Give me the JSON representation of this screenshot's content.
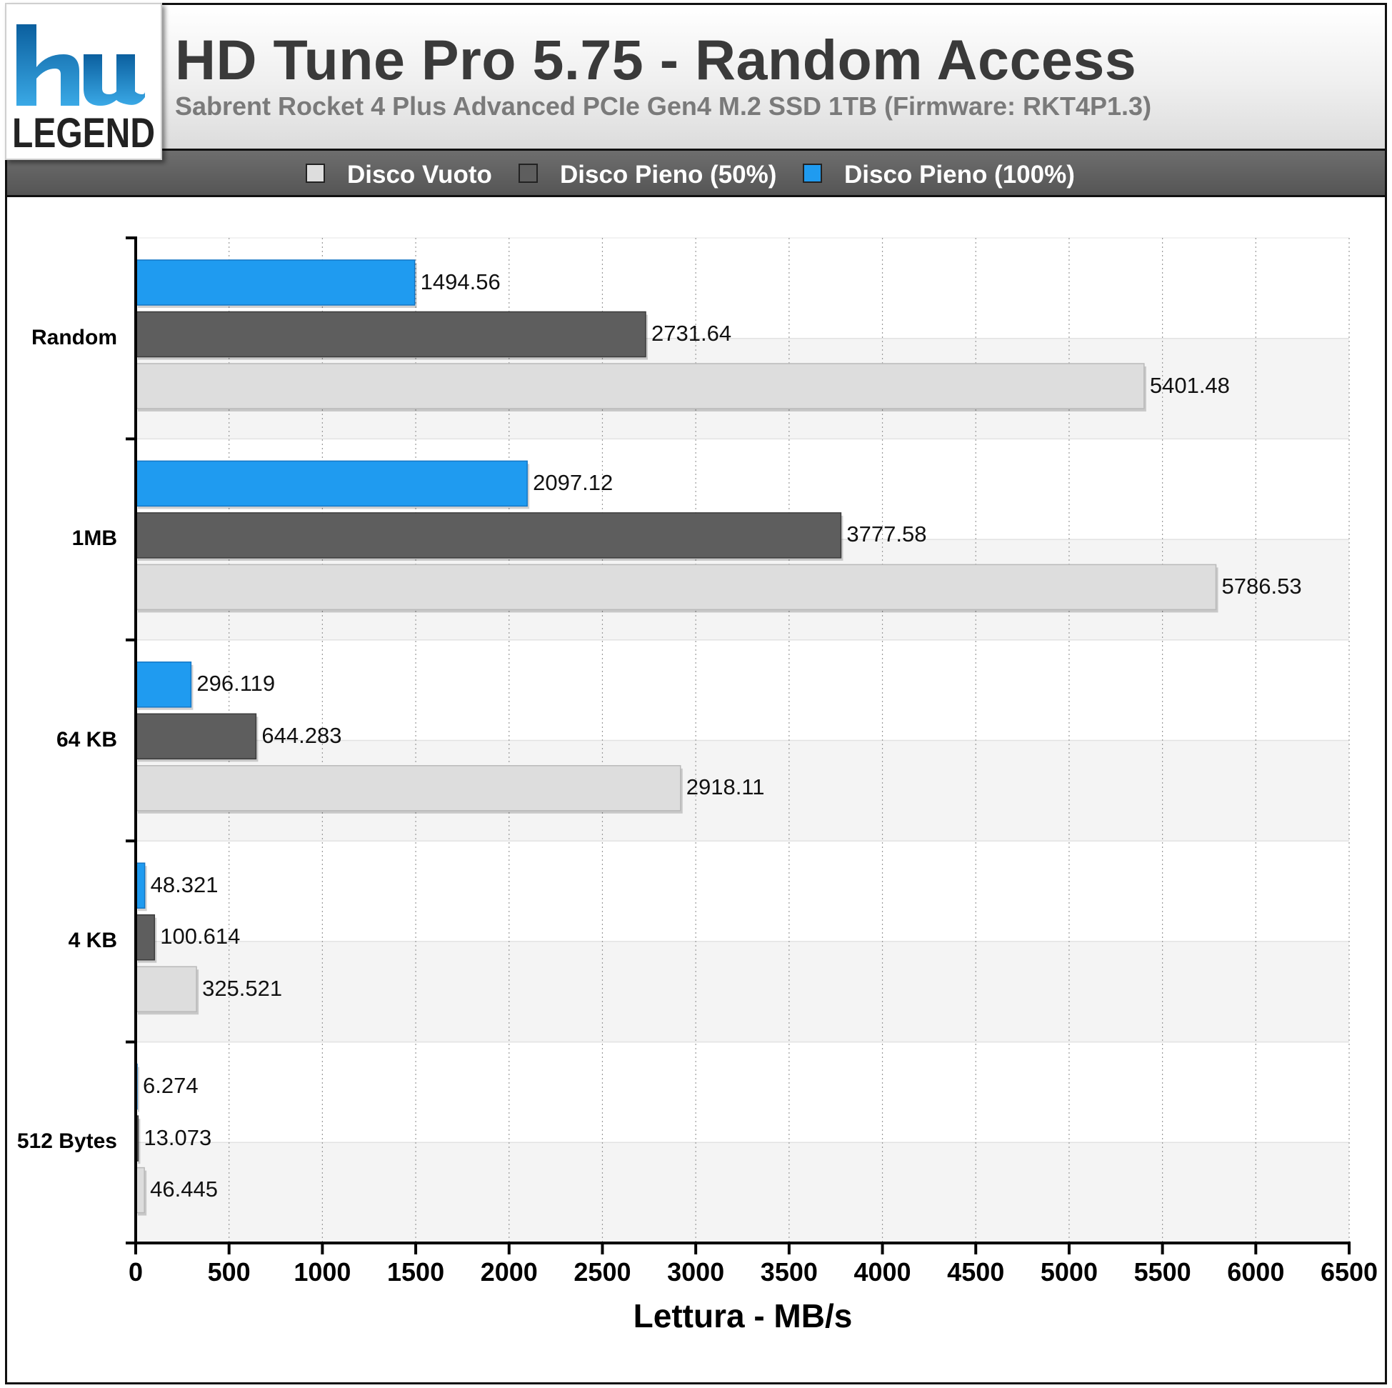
{
  "header": {
    "title": "HD Tune Pro 5.75 - Random Access",
    "subtitle": "Sabrent Rocket 4 Plus Advanced PCIe Gen4 M.2 SSD 1TB (Firmware: RKT4P1.3)",
    "logo_text": "LEGEND"
  },
  "legend": {
    "items": [
      {
        "label": "Disco Vuoto",
        "color": "#dddddd"
      },
      {
        "label": "Disco Pieno (50%)",
        "color": "#5e5e5e"
      },
      {
        "label": "Disco Pieno (100%)",
        "color": "#1f9bf0"
      }
    ]
  },
  "chart_data": {
    "type": "bar",
    "orientation": "horizontal",
    "categories": [
      "Random",
      "1MB",
      "64 KB",
      "4 KB",
      "512 Bytes"
    ],
    "series": [
      {
        "name": "Disco Pieno (100%)",
        "color": "#1f9bf0",
        "values": [
          1494.56,
          2097.12,
          296.119,
          48.321,
          6.274
        ],
        "labels": [
          "1494.56",
          "2097.12",
          "296.119",
          "48.321",
          "6.274"
        ]
      },
      {
        "name": "Disco Pieno (50%)",
        "color": "#5e5e5e",
        "values": [
          2731.64,
          3777.58,
          644.283,
          100.614,
          13.073
        ],
        "labels": [
          "2731.64",
          "3777.58",
          "644.283",
          "100.614",
          "13.073"
        ]
      },
      {
        "name": "Disco Vuoto",
        "color": "#dddddd",
        "values": [
          5401.48,
          5786.53,
          2918.11,
          325.521,
          46.445
        ],
        "labels": [
          "5401.48",
          "5786.53",
          "2918.11",
          "325.521",
          "46.445"
        ]
      }
    ],
    "xlabel": "Lettura - MB/s",
    "xlim": [
      0,
      6500
    ],
    "xticks": [
      "0",
      "500",
      "1000",
      "1500",
      "2000",
      "2500",
      "3000",
      "3500",
      "4000",
      "4500",
      "5000",
      "5500",
      "6000",
      "6500"
    ],
    "grid": true,
    "legend_position": "top"
  }
}
